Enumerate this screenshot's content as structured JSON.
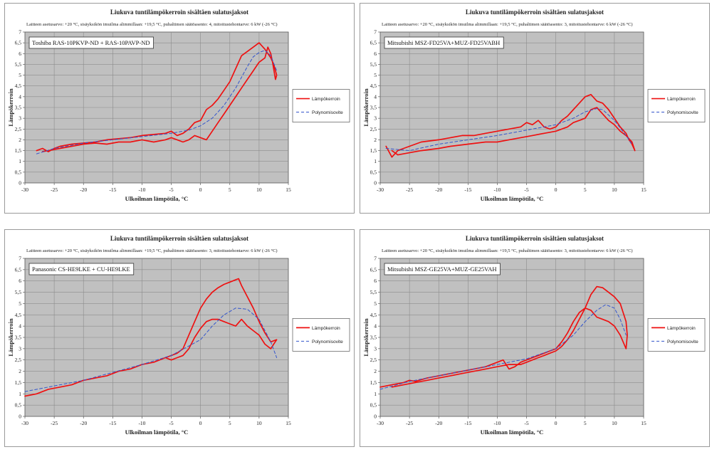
{
  "figure": {
    "colors": {
      "plot_bg": "#c0c0c0",
      "grid": "#8c8c8c",
      "measured": "#ee1111",
      "fit": "#3355cc"
    }
  },
  "chart_data": [
    {
      "type": "line",
      "title": "Liukuva tuntilämpökerroin sisältäen sulatusjaksot",
      "subtitle": "Laitteen asetusarvo: +20 °C,  sisäyksikön imuilma alimmillaan: +19,5 °C, puhaltimen säätöasento: 4, mitoitustehontarve: 6 kW (-26 °C)",
      "model": "Toshiba RAS-10PKVP-ND + RAS-10PAVP-ND",
      "xlabel": "Ulkoilman lämpötila, °C",
      "ylabel": "Lämpökerroin",
      "xlim": [
        -30,
        15
      ],
      "ylim": [
        0,
        7
      ],
      "xticks": [
        -30,
        -25,
        -20,
        -15,
        -10,
        -5,
        0,
        5,
        10,
        15
      ],
      "xtick_labels": [
        "-30",
        "-25",
        "-20",
        "-15",
        "-10",
        "-5",
        "0",
        "5",
        "10",
        "15"
      ],
      "yticks": [
        0,
        0.5,
        1,
        1.5,
        2,
        2.5,
        3,
        3.5,
        4,
        4.5,
        5,
        5.5,
        6,
        6.5,
        7
      ],
      "ytick_labels": [
        "0",
        "0,5",
        "1",
        "1,5",
        "2",
        "2,5",
        "3",
        "3,5",
        "4",
        "4,5",
        "5",
        "5,5",
        "6",
        "6,5",
        "7"
      ],
      "legend": {
        "measured": "Lämpökerroin",
        "fit": "Polynomisovite"
      },
      "series": [
        {
          "name": "Lämpökerroin",
          "style": "solid",
          "x": [
            -28,
            -27,
            -26,
            -25,
            -24,
            -22,
            -20,
            -18,
            -16,
            -14,
            -12,
            -10,
            -8,
            -6,
            -5,
            -4,
            -3,
            -2,
            -1,
            0,
            1,
            2,
            3,
            4,
            5,
            6,
            7,
            8,
            9,
            10,
            11,
            12,
            12.5,
            13,
            12.8,
            12.3,
            12,
            11.5,
            11,
            10,
            9,
            8,
            7,
            6,
            5,
            4,
            3,
            2,
            1,
            0,
            -1,
            -2,
            -3,
            -4,
            -5,
            -6,
            -8,
            -10,
            -12,
            -14,
            -16,
            -18,
            -20,
            -22,
            -24,
            -25,
            -26,
            -27
          ],
          "y": [
            1.5,
            1.6,
            1.45,
            1.6,
            1.7,
            1.8,
            1.85,
            1.9,
            2.0,
            2.05,
            2.1,
            2.2,
            2.25,
            2.3,
            2.4,
            2.2,
            2.3,
            2.5,
            2.8,
            2.9,
            3.4,
            3.6,
            3.9,
            4.3,
            4.7,
            5.3,
            5.9,
            6.1,
            6.3,
            6.5,
            6.2,
            5.8,
            5.5,
            5.0,
            4.8,
            5.6,
            6.0,
            6.3,
            5.8,
            5.6,
            5.2,
            4.8,
            4.4,
            4.0,
            3.6,
            3.2,
            2.8,
            2.4,
            2.0,
            2.1,
            2.2,
            2.0,
            1.9,
            2.0,
            2.1,
            2.0,
            1.9,
            2.0,
            1.9,
            1.9,
            1.8,
            1.85,
            1.8,
            1.7,
            1.6,
            1.55,
            1.5,
            1.45
          ]
        },
        {
          "name": "Polynomisovite",
          "style": "dashed",
          "x": [
            -28,
            -25,
            -20,
            -15,
            -10,
            -5,
            -2,
            0,
            2,
            4,
            6,
            8,
            9,
            10,
            11,
            12,
            13
          ],
          "y": [
            1.35,
            1.6,
            1.85,
            2.0,
            2.15,
            2.3,
            2.45,
            2.65,
            3.0,
            3.6,
            4.4,
            5.4,
            5.85,
            6.05,
            6.15,
            5.9,
            5.2
          ]
        }
      ]
    },
    {
      "type": "line",
      "title": "Liukuva tuntilämpökerroin sisältäen sulatusjaksot",
      "subtitle": "Laitteen asetusarvo: +20 °C,  sisäyksikön imuilma alimmillaan: +19,5 °C, puhaltimen säätöasento: 3, mitoitustehontarve: 6 kW (-26 °C)",
      "model": "Mitsubishi MSZ-FD25VA+MUZ-FD25VABH",
      "xlabel": "Ulkoilman lämpötila, °C",
      "ylabel": "Lämpökerroin",
      "xlim": [
        -30,
        15
      ],
      "ylim": [
        0,
        7
      ],
      "xticks": [
        -30,
        -25,
        -20,
        -15,
        -10,
        -5,
        0,
        5,
        10,
        15
      ],
      "xtick_labels": [
        "-30",
        "-25",
        "-20",
        "-15",
        "-10",
        "-5",
        "0",
        "5",
        "10",
        "15"
      ],
      "yticks": [
        0,
        0.5,
        1,
        1.5,
        2,
        2.5,
        3,
        3.5,
        4,
        4.5,
        5,
        5.5,
        6,
        6.5,
        7
      ],
      "ytick_labels": [
        "0",
        "0,5",
        "1",
        "1,5",
        "2",
        "2,5",
        "3",
        "3,5",
        "4",
        "4,5",
        "5",
        "5,5",
        "6",
        "6,5",
        "7"
      ],
      "legend": {
        "measured": "Lämpökerroin",
        "fit": "Polynomisovite"
      },
      "series": [
        {
          "name": "Lämpökerroin",
          "style": "solid",
          "x": [
            -29,
            -28,
            -27,
            -26,
            -25,
            -23,
            -20,
            -18,
            -16,
            -14,
            -12,
            -10,
            -8,
            -6,
            -5,
            -4,
            -3,
            -2,
            -1,
            0,
            1,
            2,
            3,
            4,
            5,
            6,
            7,
            8,
            9,
            10,
            11,
            12,
            12.5,
            13,
            13.5,
            13,
            12,
            11,
            10,
            9,
            8,
            7,
            6,
            5,
            4,
            3,
            2,
            1,
            0,
            -2,
            -4,
            -6,
            -8,
            -10,
            -12,
            -15,
            -18,
            -20,
            -23,
            -25,
            -27,
            -28
          ],
          "y": [
            1.7,
            1.2,
            1.5,
            1.6,
            1.7,
            1.9,
            2.0,
            2.1,
            2.2,
            2.2,
            2.3,
            2.4,
            2.5,
            2.6,
            2.8,
            2.7,
            2.9,
            2.6,
            2.5,
            2.6,
            2.9,
            3.1,
            3.4,
            3.7,
            4.0,
            4.1,
            3.8,
            3.7,
            3.4,
            3.0,
            2.6,
            2.3,
            2.0,
            1.8,
            1.5,
            1.9,
            2.2,
            2.4,
            2.7,
            2.9,
            3.2,
            3.5,
            3.4,
            3.0,
            2.9,
            2.8,
            2.6,
            2.5,
            2.4,
            2.3,
            2.2,
            2.1,
            2.0,
            1.9,
            1.9,
            1.8,
            1.7,
            1.6,
            1.5,
            1.4,
            1.3,
            1.5
          ]
        },
        {
          "name": "Polynomisovite",
          "style": "dashed",
          "x": [
            -29,
            -25,
            -20,
            -15,
            -10,
            -5,
            0,
            3,
            5,
            7,
            8,
            10,
            12,
            13
          ],
          "y": [
            1.6,
            1.5,
            1.8,
            2.0,
            2.2,
            2.45,
            2.7,
            3.0,
            3.3,
            3.45,
            3.4,
            2.9,
            2.2,
            1.8
          ]
        }
      ]
    },
    {
      "type": "line",
      "title": "Liukuva tuntilämpökerroin sisältäen sulatusjaksot",
      "subtitle": "Laitteen asetusarvo: +20 °C,  sisäyksikön imuilma alimmillaan: +19,5 °C, puhaltimen säätöasento: 3, mitoitustehontarve: 6 kW (-26 °C)",
      "model": "Panasonic CS-HE9LKE + CU-HE9LKE",
      "xlabel": "Ulkoilman lämpötila, °C",
      "ylabel": "Lämpökerroin",
      "xlim": [
        -30,
        15
      ],
      "ylim": [
        0,
        7
      ],
      "xticks": [
        -30,
        -25,
        -20,
        -15,
        -10,
        -5,
        0,
        5,
        10,
        15
      ],
      "xtick_labels": [
        "-30",
        "-25",
        "-20",
        "-15",
        "-10",
        "-5",
        "0",
        "5",
        "10",
        "15"
      ],
      "yticks": [
        0,
        0.5,
        1,
        1.5,
        2,
        2.5,
        3,
        3.5,
        4,
        4.5,
        5,
        5.5,
        6,
        6.5,
        7
      ],
      "ytick_labels": [
        "0",
        "0,5",
        "1",
        "1,5",
        "2",
        "2,5",
        "3",
        "3,5",
        "4",
        "4,5",
        "5",
        "5,5",
        "6",
        "6,5",
        "7"
      ],
      "legend": {
        "measured": "Lämpökerroin",
        "fit": "Polynomisovite"
      },
      "series": [
        {
          "name": "Lämpökerroin",
          "style": "solid",
          "x": [
            -30,
            -28,
            -26,
            -24,
            -22,
            -20,
            -18,
            -16,
            -14,
            -12,
            -10,
            -8,
            -6,
            -5,
            -4,
            -3,
            -2,
            -1,
            0,
            1,
            2,
            3,
            4,
            5,
            6,
            6.5,
            7,
            8,
            9,
            10,
            11,
            12,
            13,
            12.5,
            12,
            11,
            10,
            9,
            8,
            7,
            6,
            5,
            4,
            3,
            2,
            1,
            0,
            -1,
            -2,
            -3,
            -4,
            -5,
            -6
          ],
          "y": [
            0.9,
            1.0,
            1.2,
            1.3,
            1.4,
            1.6,
            1.7,
            1.8,
            2.0,
            2.1,
            2.3,
            2.4,
            2.6,
            2.7,
            2.8,
            3.0,
            3.6,
            4.2,
            4.8,
            5.2,
            5.5,
            5.7,
            5.85,
            5.95,
            6.05,
            6.1,
            5.8,
            5.3,
            4.8,
            4.2,
            3.7,
            3.3,
            3.4,
            3.2,
            3.0,
            3.2,
            3.6,
            3.8,
            4.0,
            4.3,
            4.0,
            4.1,
            4.2,
            4.3,
            4.3,
            4.2,
            3.9,
            3.5,
            3.0,
            2.7,
            2.6,
            2.5,
            2.6
          ]
        },
        {
          "name": "Polynomisovite",
          "style": "dashed",
          "x": [
            -30,
            -25,
            -20,
            -15,
            -10,
            -5,
            0,
            2,
            4,
            6,
            8,
            10,
            12,
            13
          ],
          "y": [
            1.1,
            1.35,
            1.6,
            1.95,
            2.3,
            2.7,
            3.4,
            4.0,
            4.5,
            4.8,
            4.75,
            4.3,
            3.3,
            2.6
          ]
        }
      ]
    },
    {
      "type": "line",
      "title": "Liukuva tuntilämpökerroin sisältäen sulatusjaksot",
      "subtitle": "Laitteen asetusarvo: +20 °C,  sisäyksikön imuilma alimmillaan: +19,5 °C, puhaltimen säätöasento: 3, mitoitustehontarve: 6 kW (-26 °C)",
      "model": "Mitsubishi MSZ-GE25VA+MUZ-GE25VAH",
      "xlabel": "Ulkoilman lämpötila, °C",
      "ylabel": "Lämpökerroin",
      "xlim": [
        -30,
        15
      ],
      "ylim": [
        0,
        7
      ],
      "xticks": [
        -30,
        -25,
        -20,
        -15,
        -10,
        -5,
        0,
        5,
        10,
        15
      ],
      "xtick_labels": [
        "-30",
        "-25",
        "-20",
        "-15",
        "-10",
        "-5",
        "0",
        "5",
        "10",
        "15"
      ],
      "yticks": [
        0,
        0.5,
        1,
        1.5,
        2,
        2.5,
        3,
        3.5,
        4,
        4.5,
        5,
        5.5,
        6,
        6.5,
        7
      ],
      "ytick_labels": [
        "0",
        "0,5",
        "1",
        "1,5",
        "2",
        "2,5",
        "3",
        "3,5",
        "4",
        "4,5",
        "5",
        "5,5",
        "6",
        "6,5",
        "7"
      ],
      "legend": {
        "measured": "Lämpökerroin",
        "fit": "Polynomisovite"
      },
      "series": [
        {
          "name": "Lämpökerroin",
          "style": "solid",
          "x": [
            -30,
            -28,
            -26,
            -25,
            -24,
            -22,
            -20,
            -18,
            -16,
            -14,
            -12,
            -10,
            -9,
            -8,
            -7,
            -6,
            -5,
            -4,
            -3,
            -2,
            -1,
            0,
            1,
            2,
            3,
            4,
            5,
            6,
            7,
            8,
            9,
            10,
            11,
            12,
            12.2,
            12,
            11.5,
            11,
            10,
            9,
            8,
            7,
            6,
            5,
            4,
            3,
            2,
            1,
            0,
            -1,
            -2,
            -3,
            -4,
            -5,
            -6,
            -8,
            -10,
            -12,
            -14,
            -16,
            -18,
            -20,
            -22,
            -24,
            -26,
            -28
          ],
          "y": [
            1.3,
            1.4,
            1.5,
            1.6,
            1.55,
            1.7,
            1.8,
            1.9,
            2.0,
            2.1,
            2.2,
            2.4,
            2.5,
            2.1,
            2.2,
            2.4,
            2.5,
            2.6,
            2.7,
            2.8,
            2.9,
            3.0,
            3.3,
            3.7,
            4.2,
            4.6,
            4.8,
            4.7,
            4.4,
            4.3,
            4.2,
            4.0,
            3.6,
            3.0,
            3.6,
            4.2,
            4.6,
            5.0,
            5.3,
            5.5,
            5.7,
            5.75,
            5.4,
            4.8,
            4.3,
            3.8,
            3.4,
            3.1,
            2.9,
            2.8,
            2.7,
            2.6,
            2.5,
            2.4,
            2.3,
            2.3,
            2.2,
            2.1,
            2.0,
            1.9,
            1.8,
            1.7,
            1.6,
            1.5,
            1.4,
            1.3
          ]
        },
        {
          "name": "Polynomisovite",
          "style": "dashed",
          "x": [
            -30,
            -25,
            -20,
            -15,
            -10,
            -5,
            0,
            3,
            5,
            7,
            8.5,
            10,
            11,
            12
          ],
          "y": [
            1.2,
            1.55,
            1.8,
            2.05,
            2.3,
            2.55,
            3.0,
            3.6,
            4.2,
            4.7,
            4.95,
            4.8,
            4.3,
            3.6
          ]
        }
      ]
    }
  ]
}
